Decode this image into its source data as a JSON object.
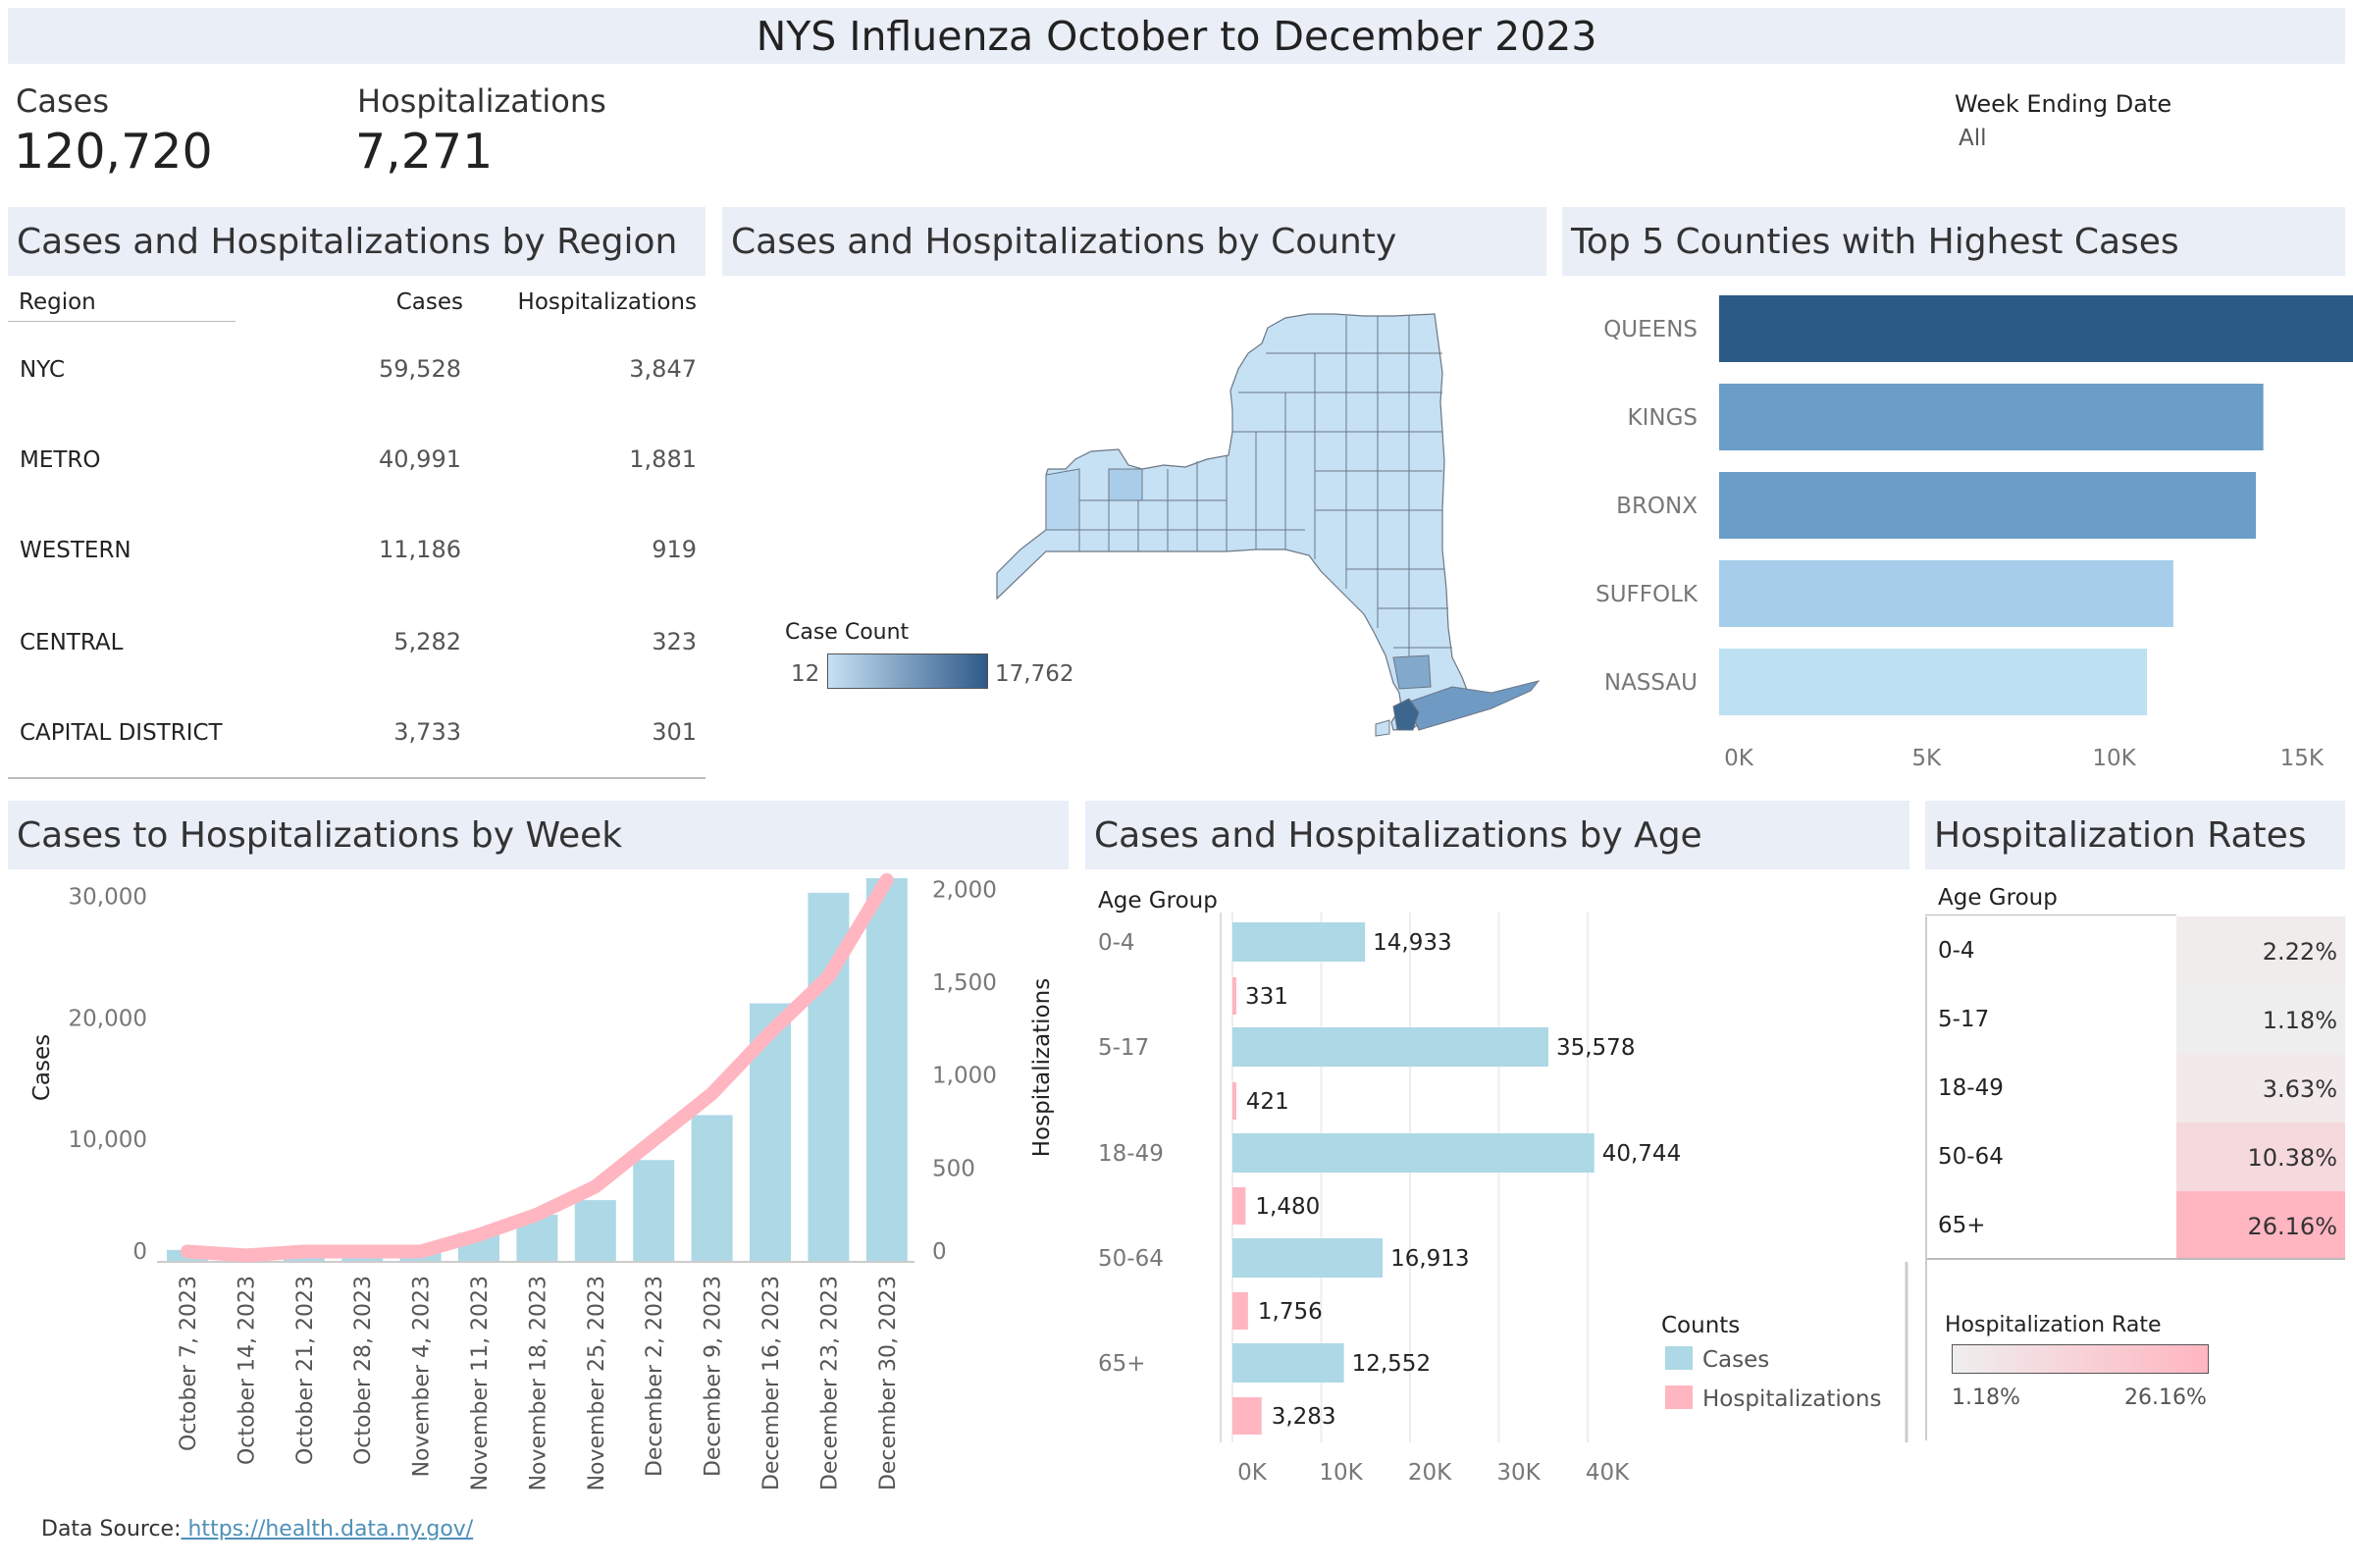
{
  "title": "NYS Influenza October to December 2023",
  "kpis": {
    "cases_label": "Cases",
    "cases_value": "120,720",
    "hosp_label": "Hospitalizations",
    "hosp_value": "7,271"
  },
  "filter": {
    "label": "Week Ending Date",
    "value": "All"
  },
  "region": {
    "title": "Cases and Hospitalizations by Region",
    "headers": [
      "Region",
      "Cases",
      "Hospitalizations"
    ],
    "rows": [
      {
        "region": "NYC",
        "cases": "59,528",
        "hosp": "3,847"
      },
      {
        "region": "METRO",
        "cases": "40,991",
        "hosp": "1,881"
      },
      {
        "region": "WESTERN",
        "cases": "11,186",
        "hosp": "919"
      },
      {
        "region": "CENTRAL",
        "cases": "5,282",
        "hosp": "323"
      },
      {
        "region": "CAPITAL DISTRICT",
        "cases": "3,733",
        "hosp": "301"
      }
    ]
  },
  "county_map": {
    "title": "Cases and Hospitalizations by County",
    "legend_title": "Case Count",
    "legend_min": "12",
    "legend_max": "17,762",
    "colors": {
      "low": "#c6e0f4",
      "high": "#2f5a88"
    }
  },
  "age_table": {
    "title": "Hospitalization Rates",
    "header": "Age Group",
    "rows": [
      {
        "age": "0-4",
        "rate": "2.22%",
        "value": 2.22
      },
      {
        "age": "5-17",
        "rate": "1.18%",
        "value": 1.18
      },
      {
        "age": "18-49",
        "rate": "3.63%",
        "value": 3.63
      },
      {
        "age": "50-64",
        "rate": "10.38%",
        "value": 10.38
      },
      {
        "age": "65+",
        "rate": "26.16%",
        "value": 26.16
      }
    ],
    "legend_title": "Hospitalization Rate",
    "legend_min": "1.18%",
    "legend_max": "26.16%",
    "colors": {
      "low": "#efeeee",
      "high": "#ffb6c1"
    }
  },
  "source": {
    "label": "Data Source:",
    "link": " https://health.data.ny.gov/"
  },
  "chart_data": [
    {
      "type": "bar",
      "title": "Top 5 Counties with Highest Cases",
      "orientation": "horizontal",
      "categories": [
        "QUEENS",
        "KINGS",
        "BRONX",
        "SUFFOLK",
        "NASSAU"
      ],
      "values": [
        17762,
        14500,
        14300,
        12100,
        11400
      ],
      "xlim": [
        0,
        18000
      ],
      "xticks": [
        "0K",
        "5K",
        "10K",
        "15K"
      ],
      "colors": [
        "#2c5a86",
        "#6a9dc8",
        "#6a9dc8",
        "#a6cdea",
        "#bde0f3"
      ]
    },
    {
      "type": "bar",
      "title": "Cases to Hospitalizations by Week",
      "categories": [
        "October 7, 2023",
        "October 14, 2023",
        "October 21, 2023",
        "October 28, 2023",
        "November 4, 2023",
        "November 11, 2023",
        "November 18, 2023",
        "November 25, 2023",
        "December 2, 2023",
        "December 9, 2023",
        "December 16, 2023",
        "December 23, 2023",
        "December 30, 2023"
      ],
      "series": [
        {
          "name": "Cases",
          "axis": "left",
          "type": "bar",
          "color": "#add8e6",
          "values": [
            900,
            400,
            500,
            700,
            1100,
            2300,
            3800,
            5000,
            8300,
            12000,
            21200,
            30300,
            31500
          ]
        },
        {
          "name": "Hospitalizations",
          "axis": "right",
          "type": "line",
          "color": "#ffb6c1",
          "values": [
            50,
            30,
            50,
            50,
            50,
            140,
            250,
            400,
            650,
            900,
            1230,
            1530,
            2050
          ]
        }
      ],
      "ylabel": "Cases",
      "ylabel_right": "Hospitalizations",
      "ylim": [
        0,
        31500
      ],
      "ylim_right": [
        0,
        2060
      ],
      "yticks": [
        "0",
        "10,000",
        "20,000",
        "30,000"
      ],
      "yticks_right": [
        "0",
        "500",
        "1,000",
        "1,500",
        "2,000"
      ]
    },
    {
      "type": "bar",
      "title": "Cases and Hospitalizations by Age",
      "orientation": "horizontal",
      "categories": [
        "0-4",
        "5-17",
        "18-49",
        "50-64",
        "65+"
      ],
      "category_header": "Age Group",
      "series": [
        {
          "name": "Cases",
          "color": "#add8e6",
          "values": [
            14933,
            35578,
            40744,
            16913,
            12552
          ],
          "labels": [
            "14,933",
            "35,578",
            "40,744",
            "16,913",
            "12,552"
          ]
        },
        {
          "name": "Hospitalizations",
          "color": "#ffb6c1",
          "values": [
            331,
            421,
            1480,
            1756,
            3283
          ],
          "labels": [
            "331",
            "421",
            "1,480",
            "1,756",
            "3,283"
          ]
        }
      ],
      "xlim": [
        0,
        48000
      ],
      "xticks": [
        "0K",
        "10K",
        "20K",
        "30K",
        "40K"
      ],
      "legend_title": "Counts",
      "legend": "bottom-right"
    }
  ]
}
